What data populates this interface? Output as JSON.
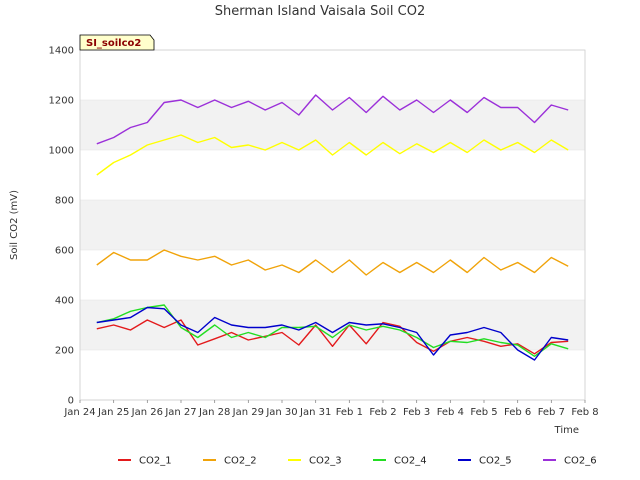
{
  "chart_data": {
    "type": "line",
    "title": "Sherman Island Vaisala Soil CO2",
    "badge": "SI_soilco2",
    "xlabel": "Time",
    "ylabel": "Soil CO2 (mV)",
    "ylim": [
      0,
      1400
    ],
    "yticks": [
      0,
      200,
      400,
      600,
      800,
      1000,
      1200,
      1400
    ],
    "xlim": [
      "Jan 24",
      "Feb 8"
    ],
    "xticks": [
      "Jan 24",
      "Jan 25",
      "Jan 26",
      "Jan 27",
      "Jan 28",
      "Jan 29",
      "Jan 30",
      "Jan 31",
      "Feb 1",
      "Feb 2",
      "Feb 3",
      "Feb 4",
      "Feb 5",
      "Feb 6",
      "Feb 7",
      "Feb 8"
    ],
    "grid": "horizontal bands",
    "legend_position": "bottom",
    "x": [
      "Jan 24 12:00",
      "Jan 25 00:00",
      "Jan 25 12:00",
      "Jan 26 00:00",
      "Jan 26 12:00",
      "Jan 27 00:00",
      "Jan 27 12:00",
      "Jan 28 00:00",
      "Jan 28 12:00",
      "Jan 29 00:00",
      "Jan 29 12:00",
      "Jan 30 00:00",
      "Jan 30 12:00",
      "Jan 31 00:00",
      "Jan 31 12:00",
      "Feb 1 00:00",
      "Feb 1 12:00",
      "Feb 2 00:00",
      "Feb 2 12:00",
      "Feb 3 00:00",
      "Feb 3 12:00",
      "Feb 4 00:00",
      "Feb 4 12:00",
      "Feb 5 00:00",
      "Feb 5 12:00",
      "Feb 6 00:00",
      "Feb 6 12:00",
      "Feb 7 00:00",
      "Feb 7 12:00"
    ],
    "series": [
      {
        "name": "CO2_1",
        "color": "#e31a1c",
        "values": [
          285,
          300,
          280,
          320,
          290,
          320,
          220,
          245,
          270,
          240,
          255,
          270,
          220,
          300,
          215,
          300,
          225,
          310,
          295,
          230,
          195,
          235,
          250,
          235,
          215,
          225,
          185,
          230,
          235
        ]
      },
      {
        "name": "CO2_2",
        "color": "#f0a30a",
        "values": [
          540,
          590,
          560,
          560,
          600,
          575,
          560,
          575,
          540,
          560,
          520,
          540,
          510,
          560,
          510,
          560,
          500,
          550,
          510,
          550,
          510,
          560,
          510,
          570,
          520,
          550,
          510,
          570,
          535
        ]
      },
      {
        "name": "CO2_3",
        "color": "#ffff00",
        "values": [
          900,
          950,
          980,
          1020,
          1040,
          1060,
          1030,
          1050,
          1010,
          1020,
          1000,
          1030,
          1000,
          1040,
          980,
          1030,
          980,
          1030,
          985,
          1025,
          990,
          1030,
          990,
          1040,
          1000,
          1030,
          990,
          1040,
          1000
        ]
      },
      {
        "name": "CO2_4",
        "color": "#22dd22",
        "values": [
          310,
          325,
          355,
          370,
          380,
          290,
          250,
          300,
          250,
          270,
          250,
          290,
          290,
          295,
          250,
          300,
          280,
          295,
          280,
          250,
          210,
          235,
          230,
          245,
          230,
          220,
          175,
          225,
          205
        ]
      },
      {
        "name": "CO2_5",
        "color": "#0000cc",
        "values": [
          310,
          320,
          330,
          370,
          365,
          300,
          270,
          330,
          300,
          290,
          290,
          300,
          280,
          310,
          270,
          310,
          300,
          305,
          290,
          270,
          180,
          260,
          270,
          290,
          270,
          200,
          160,
          250,
          240
        ]
      },
      {
        "name": "CO2_6",
        "color": "#9b30d9",
        "values": [
          1025,
          1050,
          1090,
          1110,
          1190,
          1200,
          1170,
          1200,
          1170,
          1195,
          1160,
          1190,
          1140,
          1220,
          1160,
          1210,
          1150,
          1215,
          1160,
          1200,
          1150,
          1200,
          1150,
          1210,
          1170,
          1170,
          1110,
          1180,
          1160
        ]
      }
    ]
  }
}
